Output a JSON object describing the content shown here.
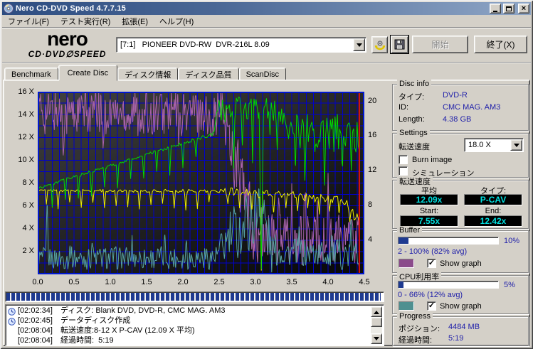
{
  "window": {
    "title": "Nero CD-DVD Speed 4.7.7.15"
  },
  "menu": {
    "items": [
      "ファイル(F)",
      "テスト実行(R)",
      "拡張(E)",
      "ヘルプ(H)"
    ]
  },
  "logo": {
    "name": "nero",
    "product": "CD·DVD∅SPEED"
  },
  "toolbar": {
    "drive": "[7:1]   PIONEER DVD-RW  DVR-216L 8.09",
    "start_label": "開始",
    "exit_label": "終了(X)"
  },
  "tabs": [
    "Benchmark",
    "Create Disc",
    "ディスク情報",
    "ディスク品質",
    "ScanDisc"
  ],
  "disc_info": {
    "title": "Disc info",
    "type_label": "タイプ:",
    "type": "DVD-R",
    "id_label": "ID:",
    "id": "CMC MAG. AM3",
    "length_label": "Length:",
    "length": "4.38 GB"
  },
  "settings": {
    "title": "Settings",
    "speed_label": "転送速度",
    "speed_value": "18.0 X",
    "burn_image_label": "Burn image",
    "burn_image_checked": false,
    "simulation_label": "シミュレーション",
    "simulation_checked": false
  },
  "transfer": {
    "title": "転送速度",
    "avg_label": "平均",
    "avg": "12.09x",
    "type_label": "タイプ:",
    "type": "P-CAV",
    "start_label": "Start:",
    "start": "7.55x",
    "end_label": "End:",
    "end": "12.42x"
  },
  "buffer": {
    "title": "Buffer",
    "percent": "10%",
    "fill_style": "width:10%",
    "range": "2 - 100% (82% avg)",
    "show_graph_label": "Show graph",
    "show_graph_checked": true,
    "swatch_color": "#8b4b8b"
  },
  "cpu": {
    "title": "CPU利用率",
    "percent": "5%",
    "fill_style": "width:5%",
    "range": "0 - 66% (12% avg)",
    "show_graph_label": "Show graph",
    "show_graph_checked": true,
    "swatch_color": "#4f9090"
  },
  "progress": {
    "title": "Progress",
    "position_label": "ポジション:",
    "position": "4484 MB",
    "elapsed_label": "経過時間:",
    "elapsed": "5:19",
    "bar_fill_style": "width:99.5%"
  },
  "log": {
    "entries": [
      {
        "icon": true,
        "time": "[02:02:34]",
        "text": "ディスク: Blank DVD, DVD-R, CMC MAG. AM3"
      },
      {
        "icon": true,
        "time": "[02:02:45]",
        "text": "データディスク作成"
      },
      {
        "icon": false,
        "time": "[02:08:04]",
        "text": "転送速度:8-12 X P-CAV (12.09 X 平均)"
      },
      {
        "icon": false,
        "time": "[02:08:04]",
        "text": "経過時間:  5:19"
      }
    ]
  },
  "chart_data": {
    "type": "line",
    "title": "DVD-R write transfer rate (Create Disc)",
    "x_axis": {
      "min": 0,
      "max": 4.5,
      "grid_step": 0.1,
      "tick_step": 0.5,
      "unit": "GB",
      "tick_labels": [
        "0.0",
        "0.5",
        "1.0",
        "1.5",
        "2.0",
        "2.5",
        "3.0",
        "3.5",
        "4.0",
        "4.5"
      ]
    },
    "y_left": {
      "min": 0,
      "max": 16,
      "grid_step": 1,
      "ticks": [
        16,
        14,
        12,
        10,
        8,
        6,
        4,
        2
      ],
      "tick_suffix": " X"
    },
    "y_right": {
      "min": 0,
      "max": 21,
      "ticks": [
        20,
        16,
        12,
        8,
        4
      ]
    },
    "grid_color": "#0000cc",
    "border_color": "#0018d0",
    "bg_top": "#414141",
    "bg_bottom": "#0a0a0a",
    "position_line": {
      "x": 4.43,
      "color": "#dd1111"
    },
    "x_end": 4.43,
    "series": [
      {
        "name": "buffer-level",
        "color": "#a862a8",
        "noise_period": 0.01,
        "trend": [
          [
            0,
            14.2
          ],
          [
            2.55,
            14.2
          ],
          [
            2.7,
            10.5
          ],
          [
            2.85,
            6.5
          ],
          [
            3.0,
            3.2
          ],
          [
            4.43,
            2.6
          ]
        ],
        "amp": [
          [
            0,
            2.0
          ],
          [
            2.55,
            2.2
          ],
          [
            2.8,
            3.8
          ],
          [
            3.05,
            3.0
          ],
          [
            3.2,
            2.4
          ],
          [
            4.43,
            2.2
          ]
        ],
        "dips": [
          [
            0.35,
            2.5
          ],
          [
            0.9,
            3.0
          ],
          [
            1.45,
            2.6
          ],
          [
            1.95,
            3.2
          ],
          [
            2.35,
            2.8
          ],
          [
            3.32,
            -5.5
          ],
          [
            3.5,
            -4.0
          ],
          [
            3.68,
            -6.0
          ],
          [
            3.85,
            -3.5
          ],
          [
            4.0,
            -5.0
          ],
          [
            4.15,
            -3.0
          ],
          [
            4.3,
            -4.5
          ],
          [
            4.41,
            -3.5
          ]
        ],
        "min": 0.25,
        "max": 15.93
      },
      {
        "name": "cpu-usage",
        "color": "#55a0a0",
        "noise_period": 0.013,
        "trend": [
          [
            0,
            1.4
          ],
          [
            2.45,
            1.5
          ],
          [
            2.65,
            3.2
          ],
          [
            2.95,
            5.0
          ],
          [
            3.1,
            5.5
          ],
          [
            3.22,
            2.0
          ],
          [
            4.43,
            1.7
          ]
        ],
        "amp": [
          [
            0,
            1.0
          ],
          [
            2.45,
            1.1
          ],
          [
            2.65,
            2.6
          ],
          [
            3.1,
            3.4
          ],
          [
            3.3,
            1.3
          ],
          [
            4.43,
            1.4
          ]
        ],
        "dips": [
          [
            0.13,
            -4.6
          ],
          [
            0.45,
            -1.2
          ],
          [
            0.75,
            -1.6
          ],
          [
            1.3,
            -1.1
          ],
          [
            1.75,
            -1.3
          ],
          [
            2.05,
            -1.5
          ],
          [
            3.05,
            -4.0
          ],
          [
            3.6,
            -1.2
          ],
          [
            4.05,
            -1.4
          ],
          [
            4.32,
            -2.2
          ]
        ],
        "min": 0.2,
        "max": 15.9
      },
      {
        "name": "secondary-speed",
        "color": "#f0f000",
        "noise_period": 0.02,
        "trend": [
          [
            0,
            7.35
          ],
          [
            2.5,
            7.3
          ],
          [
            3.0,
            7.1
          ],
          [
            3.5,
            6.9
          ],
          [
            4.0,
            6.6
          ],
          [
            4.25,
            6.4
          ],
          [
            4.35,
            5.2
          ],
          [
            4.43,
            4.8
          ]
        ],
        "amp": [
          [
            0,
            0.1
          ],
          [
            2.5,
            0.15
          ],
          [
            2.6,
            0.35
          ],
          [
            4.43,
            0.4
          ]
        ],
        "periodic_dips": {
          "from": 0.12,
          "to": 2.5,
          "period": 0.16,
          "depth": 1.25
        },
        "dips": [
          [
            2.62,
            1.4
          ],
          [
            2.78,
            1.6
          ],
          [
            2.95,
            1.3
          ],
          [
            3.08,
            6.4
          ],
          [
            3.25,
            1.5
          ],
          [
            3.42,
            1.2
          ],
          [
            3.58,
            1.6
          ],
          [
            3.72,
            1.3
          ],
          [
            3.88,
            1.7
          ],
          [
            4.02,
            1.4
          ],
          [
            4.15,
            1.2
          ],
          [
            4.3,
            1.0
          ]
        ],
        "min": 0.3,
        "max": 15.9
      },
      {
        "name": "write-speed",
        "color": "#00d800",
        "noise_period": 0.016,
        "trend": [
          [
            0,
            7.55
          ],
          [
            2.42,
            12.3
          ],
          [
            2.5,
            14.5
          ],
          [
            3.05,
            14.6
          ],
          [
            3.08,
            1.2
          ],
          [
            3.11,
            14.5
          ],
          [
            3.35,
            14.3
          ],
          [
            3.5,
            12.6
          ],
          [
            4.25,
            12.5
          ],
          [
            4.36,
            12.3
          ],
          [
            4.43,
            11.5
          ]
        ],
        "amp": [
          [
            0,
            0.12
          ],
          [
            2.4,
            0.15
          ],
          [
            2.5,
            1.0
          ],
          [
            3.4,
            1.0
          ],
          [
            3.55,
            1.6
          ],
          [
            4.43,
            1.6
          ]
        ],
        "periodic_dips": {
          "from": 0.2,
          "to": 2.35,
          "period": 0.18,
          "depth": 1.9
        },
        "dips": [
          [
            2.58,
            1.8
          ],
          [
            2.7,
            5.9
          ],
          [
            2.82,
            2.4
          ],
          [
            2.96,
            5.0
          ],
          [
            3.2,
            2.2
          ],
          [
            3.3,
            3.0
          ],
          [
            3.55,
            2.4
          ],
          [
            3.68,
            3.2
          ],
          [
            3.82,
            2.2
          ],
          [
            3.95,
            3.6
          ],
          [
            4.08,
            2.0
          ],
          [
            4.2,
            2.8
          ],
          [
            4.32,
            1.8
          ]
        ],
        "min": 0.3,
        "max": 15.9
      }
    ]
  }
}
